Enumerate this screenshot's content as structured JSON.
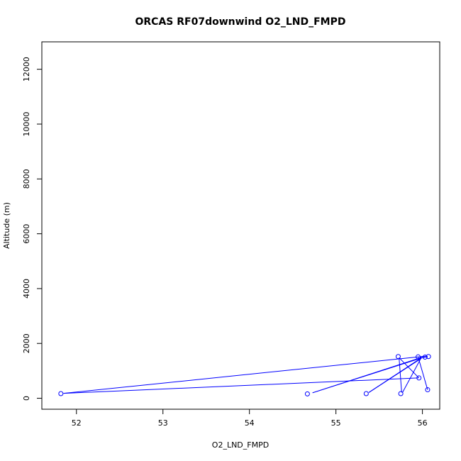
{
  "chart_data": {
    "type": "scatter",
    "title": "ORCAS RF07downwind O2_LND_FMPD",
    "xlabel": "O2_LND_FMPD",
    "ylabel": "Altitude (m)",
    "xlim": [
      51.6,
      56.2
    ],
    "ylim": [
      -400,
      13000
    ],
    "xticks": [
      52,
      53,
      54,
      55,
      56
    ],
    "yticks": [
      0,
      2000,
      4000,
      6000,
      8000,
      10000,
      12000
    ],
    "grid": false,
    "colors": {
      "series": "#0000ff",
      "axes": "#000000"
    },
    "points": [
      {
        "x": 51.82,
        "y": 170
      },
      {
        "x": 54.67,
        "y": 160
      },
      {
        "x": 55.35,
        "y": 170
      },
      {
        "x": 55.72,
        "y": 1520
      },
      {
        "x": 55.75,
        "y": 170
      },
      {
        "x": 55.95,
        "y": 1510
      },
      {
        "x": 55.96,
        "y": 740
      },
      {
        "x": 56.03,
        "y": 1500
      },
      {
        "x": 56.06,
        "y": 310
      },
      {
        "x": 56.07,
        "y": 1520
      }
    ],
    "line_segments": [
      [
        [
          51.85,
          180
        ],
        [
          56.05,
          1540
        ]
      ],
      [
        [
          51.85,
          180
        ],
        [
          55.95,
          740
        ]
      ],
      [
        [
          54.73,
          200
        ],
        [
          55.99,
          1490
        ]
      ],
      [
        [
          54.73,
          200
        ],
        [
          55.99,
          1470
        ]
      ],
      [
        [
          55.38,
          210
        ],
        [
          55.99,
          1480
        ]
      ],
      [
        [
          55.38,
          210
        ],
        [
          55.99,
          1460
        ]
      ],
      [
        [
          55.73,
          1480
        ],
        [
          55.76,
          210
        ]
      ],
      [
        [
          55.73,
          1480
        ],
        [
          55.96,
          740
        ]
      ],
      [
        [
          55.77,
          210
        ],
        [
          55.99,
          1500
        ]
      ],
      [
        [
          55.95,
          1510
        ],
        [
          56.06,
          310
        ]
      ],
      [
        [
          55.97,
          1500
        ],
        [
          56.04,
          1500
        ]
      ],
      [
        [
          56.0,
          1480
        ],
        [
          56.06,
          1520
        ]
      ]
    ]
  }
}
